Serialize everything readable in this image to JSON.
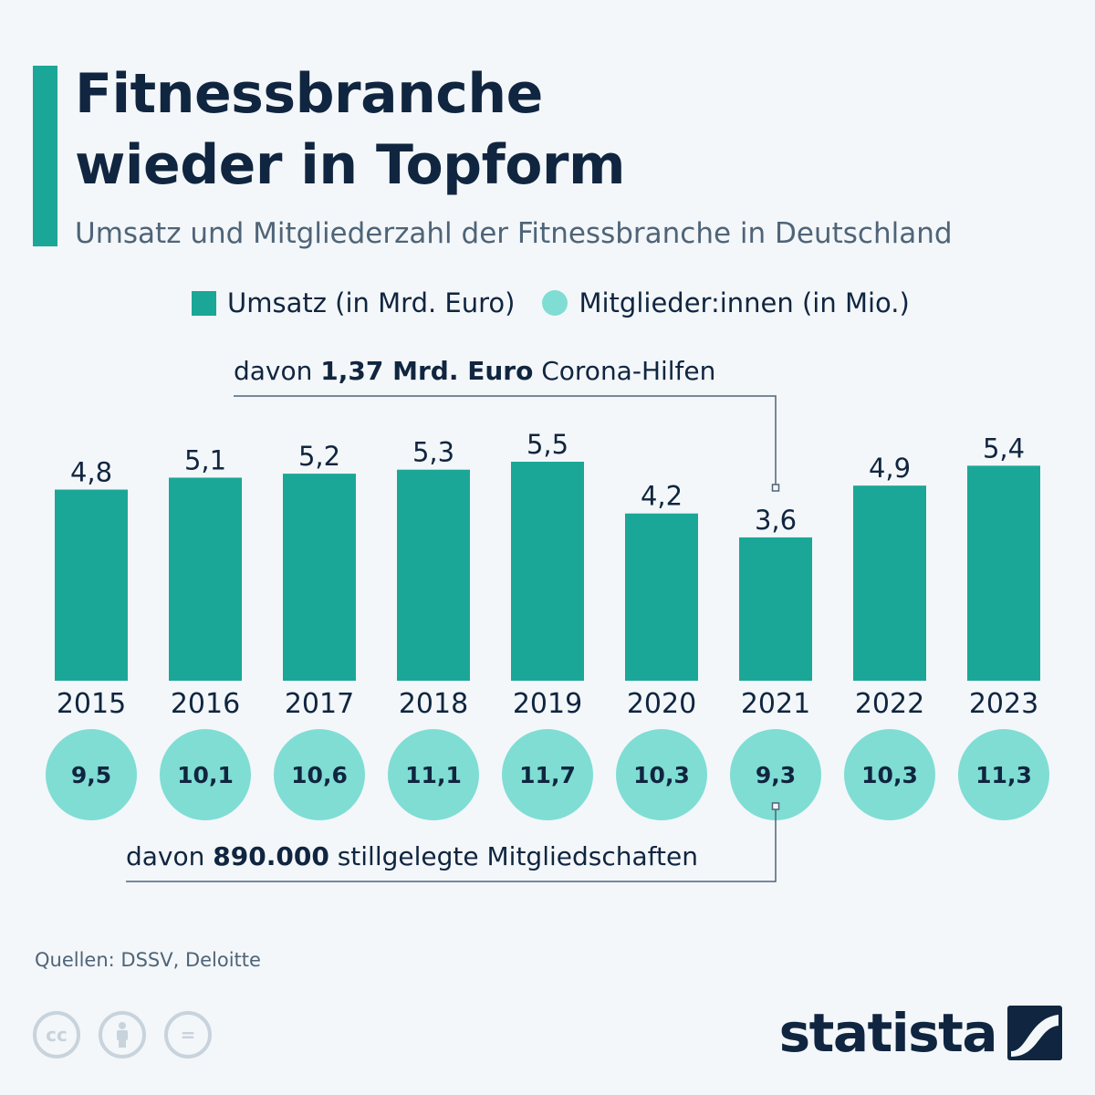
{
  "header": {
    "title": "Fitnessbranche\nwieder in Topform",
    "subtitle": "Umsatz und Mitgliederzahl der Fitnessbranche in Deutschland"
  },
  "legend": {
    "revenue_label": "Umsatz (in Mrd. Euro)",
    "members_label": "Mitglieder:innen (in Mio.)"
  },
  "annotations": {
    "revenue_note": {
      "pre": "davon ",
      "bold": "1,37 Mrd. Euro",
      "post": " Corona-Hilfen",
      "year": "2021"
    },
    "members_note": {
      "pre": "davon ",
      "bold": "890.000",
      "post": " stillgelegte Mitgliedschaften",
      "year": "2021"
    }
  },
  "chart_data": {
    "type": "bar",
    "title": "Fitnessbranche wieder in Topform",
    "subtitle": "Umsatz und Mitgliederzahl der Fitnessbranche in Deutschland",
    "categories": [
      "2015",
      "2016",
      "2017",
      "2018",
      "2019",
      "2020",
      "2021",
      "2022",
      "2023"
    ],
    "series": [
      {
        "name": "Umsatz (in Mrd. Euro)",
        "values": [
          4.8,
          5.1,
          5.2,
          5.3,
          5.5,
          4.2,
          3.6,
          4.9,
          5.4
        ],
        "labels": [
          "4,8",
          "5,1",
          "5,2",
          "5,3",
          "5,5",
          "4,2",
          "3,6",
          "4,9",
          "5,4"
        ]
      },
      {
        "name": "Mitglieder:innen (in Mio.)",
        "values": [
          9.5,
          10.1,
          10.6,
          11.1,
          11.7,
          10.3,
          9.3,
          10.3,
          11.3
        ],
        "labels": [
          "9,5",
          "10,1",
          "10,6",
          "11,1",
          "11,7",
          "10,3",
          "9,3",
          "10,3",
          "11,3"
        ]
      }
    ],
    "ylim": [
      0,
      5.5
    ],
    "xlabel": "",
    "ylabel": "",
    "colors": {
      "bars": "#1ba797",
      "circles": "#7fddd4"
    }
  },
  "footer": {
    "source": "Quellen: DSSV, Deloitte",
    "logo": "statista",
    "license_icons": [
      "cc-icon",
      "by-icon",
      "nd-icon"
    ]
  },
  "colors": {
    "accent": "#1ba797",
    "title": "#10253f",
    "subtitle": "#4f6477",
    "background": "#f3f7fa"
  }
}
